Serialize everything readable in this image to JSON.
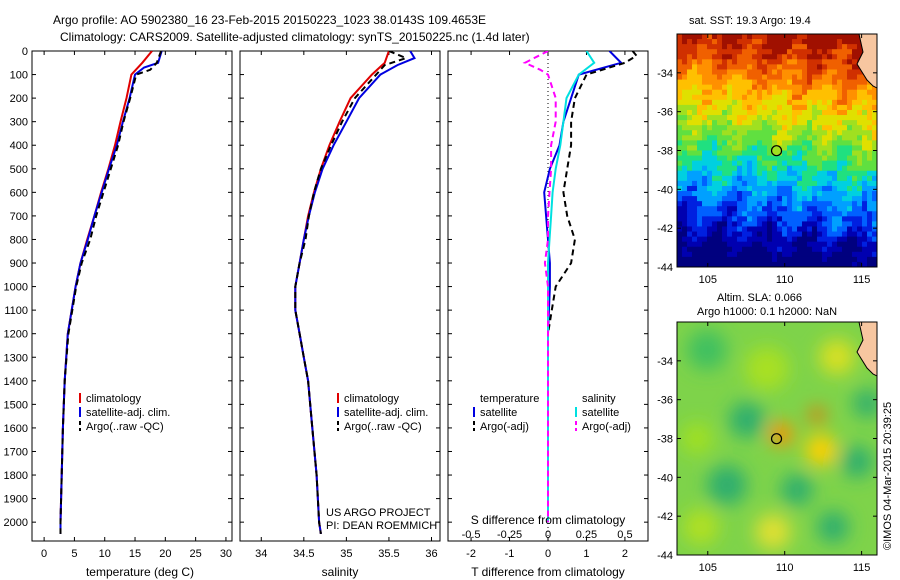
{
  "header": {
    "line1": "Argo profile: AO 5902380_16 23-Feb-2015 20150223_1023 38.0143S 109.4653E",
    "line2": "Climatology: CARS2009. Satellite-adjusted climatology: synTS_20150225.nc (1.4d later)"
  },
  "colors": {
    "climatology": "#e00000",
    "satellite": "#0000e0",
    "argo": "#000000",
    "sal_satellite": "#00e0e0",
    "sal_argo": "#ff00ff"
  },
  "chart_data": [
    {
      "type": "line",
      "panel": "temperature",
      "xlabel": "temperature (deg C)",
      "xlim": [
        -2,
        31
      ],
      "xticks": [
        0,
        5,
        10,
        15,
        20,
        25,
        30
      ],
      "ylim": [
        0,
        2080
      ],
      "yticks": [
        0,
        100,
        200,
        300,
        400,
        500,
        600,
        700,
        800,
        900,
        1000,
        1100,
        1200,
        1300,
        1400,
        1500,
        1600,
        1700,
        1800,
        1900,
        2000
      ],
      "legend": {
        "items": [
          "climatology",
          "satellite-adj. clim.",
          "Argo(..raw -QC)"
        ]
      },
      "series": [
        {
          "name": "climatology",
          "depth": [
            0,
            50,
            100,
            200,
            300,
            400,
            500,
            600,
            700,
            800,
            900,
            1000,
            1200,
            1400,
            1600,
            1800,
            2000,
            2050
          ],
          "values": [
            17.8,
            16.2,
            14.4,
            13.6,
            12.6,
            11.7,
            10.6,
            9.4,
            8.3,
            7.1,
            6.0,
            5.2,
            3.9,
            3.4,
            3.1,
            2.9,
            2.7,
            2.7
          ]
        },
        {
          "name": "satellite-adj. clim.",
          "depth": [
            0,
            50,
            70,
            100,
            200,
            300,
            400,
            500,
            600,
            700,
            800,
            900,
            1000,
            1200,
            1400,
            1600,
            1800,
            2000,
            2050
          ],
          "values": [
            19.4,
            18.8,
            16.5,
            15.0,
            14.1,
            13.0,
            12.0,
            10.7,
            9.5,
            8.3,
            7.2,
            6.0,
            5.2,
            3.9,
            3.4,
            3.1,
            2.9,
            2.7,
            2.7
          ]
        },
        {
          "name": "Argo(..raw -QC)",
          "depth": [
            0,
            50,
            80,
            100,
            200,
            300,
            400,
            500,
            600,
            700,
            800,
            900,
            1000,
            1200,
            1400,
            1600,
            1800,
            2000,
            2050
          ],
          "values": [
            19.3,
            18.6,
            17.5,
            15.2,
            14.2,
            13.1,
            12.2,
            11.0,
            9.8,
            8.6,
            7.6,
            6.2,
            5.3,
            4.0,
            3.4,
            3.1,
            2.9,
            2.7,
            2.7
          ]
        }
      ]
    },
    {
      "type": "line",
      "panel": "salinity",
      "xlabel": "salinity",
      "xlim": [
        33.75,
        36.1
      ],
      "xticks": [
        34,
        34.5,
        35,
        35.5,
        36
      ],
      "ylim": [
        0,
        2080
      ],
      "legend": {
        "items": [
          "climatology",
          "satellite-adj. clim.",
          "Argo(..raw -QC)"
        ]
      },
      "annotation": [
        "US ARGO PROJECT",
        "PI: DEAN ROEMMICH"
      ],
      "series": [
        {
          "name": "climatology",
          "depth": [
            0,
            50,
            100,
            200,
            300,
            400,
            500,
            600,
            700,
            800,
            900,
            1000,
            1100,
            1200,
            1300,
            1400,
            1600,
            1800,
            2000,
            2050
          ],
          "values": [
            35.5,
            35.45,
            35.3,
            35.05,
            34.92,
            34.8,
            34.7,
            34.62,
            34.55,
            34.5,
            34.45,
            34.4,
            34.4,
            34.45,
            34.5,
            34.55,
            34.6,
            34.65,
            34.68,
            34.7
          ]
        },
        {
          "name": "satellite-adj. clim.",
          "depth": [
            0,
            30,
            60,
            100,
            200,
            300,
            400,
            500,
            600,
            700,
            800,
            900,
            1000,
            1100,
            1200,
            1300,
            1400,
            1600,
            1800,
            2000,
            2050
          ],
          "values": [
            35.75,
            35.8,
            35.6,
            35.4,
            35.15,
            35.0,
            34.85,
            34.72,
            34.63,
            34.56,
            34.5,
            34.45,
            34.4,
            34.4,
            34.45,
            34.5,
            34.55,
            34.6,
            34.65,
            34.68,
            34.7
          ]
        },
        {
          "name": "Argo(..raw -QC)",
          "depth": [
            0,
            30,
            60,
            100,
            200,
            300,
            400,
            500,
            600,
            700,
            800,
            900,
            1000,
            1100,
            1200,
            1300,
            1400,
            1600,
            1800,
            2000,
            2050
          ],
          "values": [
            35.5,
            35.7,
            35.45,
            35.35,
            35.1,
            34.95,
            34.82,
            34.7,
            34.62,
            34.56,
            34.52,
            34.45,
            34.4,
            34.4,
            34.45,
            34.5,
            34.55,
            34.6,
            34.65,
            34.68,
            34.7
          ]
        }
      ]
    },
    {
      "type": "line",
      "panel": "difference",
      "xlabel": "T difference from climatology",
      "xlabel_top": "S difference from climatology",
      "xlim": [
        -2.6,
        2.6
      ],
      "xticks_T": [
        -2,
        -1,
        0,
        1,
        2
      ],
      "xticks_S": [
        -0.5,
        -0.25,
        0,
        0.25,
        0.5
      ],
      "xticks_S_labels": [
        "-0.5",
        "-0.25",
        "0",
        "0.25",
        "0.5"
      ],
      "ylim": [
        0,
        2080
      ],
      "legend": {
        "temperature_title": "temperature",
        "salinity_title": "salinity",
        "items": [
          "satellite",
          "Argo(-adj)",
          "satellite",
          "Argo(-adj)"
        ]
      },
      "series": [
        {
          "name": "T satellite",
          "depth": [
            0,
            50,
            100,
            200,
            300,
            400,
            500,
            600,
            700,
            800,
            900,
            1000,
            1200,
            1500,
            2000
          ],
          "values": [
            1.6,
            1.9,
            0.8,
            0.6,
            0.4,
            0.3,
            0.05,
            -0.1,
            -0.05,
            0.0,
            0.05,
            0.05,
            0.0,
            0.0,
            0.0
          ]
        },
        {
          "name": "T Argo(-adj)",
          "depth": [
            0,
            20,
            50,
            100,
            200,
            300,
            400,
            500,
            600,
            700,
            800,
            900,
            1000,
            1100,
            1200,
            1500,
            2000
          ],
          "values": [
            2.2,
            2.3,
            2.0,
            1.0,
            0.7,
            0.6,
            0.6,
            0.5,
            0.4,
            0.5,
            0.7,
            0.6,
            0.2,
            0.1,
            0.0,
            0.0,
            0.0
          ]
        },
        {
          "name": "S satellite",
          "depth": [
            0,
            50,
            100,
            200,
            300,
            400,
            500,
            600,
            700,
            800,
            900,
            1000,
            1500,
            2000
          ],
          "values": [
            0.25,
            0.3,
            0.2,
            0.12,
            0.1,
            0.08,
            0.05,
            0.03,
            0.02,
            0.01,
            0.0,
            0.0,
            0.0,
            0.0
          ]
        },
        {
          "name": "S Argo(-adj)",
          "depth": [
            0,
            50,
            80,
            100,
            200,
            300,
            400,
            500,
            600,
            700,
            800,
            900,
            1000,
            1200,
            1500,
            2000
          ],
          "values": [
            0.0,
            -0.15,
            -0.05,
            0.0,
            0.05,
            0.05,
            0.02,
            0.02,
            0.01,
            0.0,
            0.0,
            -0.02,
            0.0,
            0.0,
            0.0,
            0.0
          ]
        }
      ]
    },
    {
      "type": "heatmap",
      "panel": "sst-map",
      "title": "sat. SST: 19.3 Argo: 19.4",
      "xticks": [
        105,
        110,
        115
      ],
      "yticks": [
        -34,
        -36,
        -38,
        -40,
        -42,
        -44
      ],
      "xlim": [
        103,
        116
      ],
      "ylim": [
        -44,
        -32
      ],
      "argo_position": {
        "lon": 109.47,
        "lat": -38.01
      }
    },
    {
      "type": "heatmap",
      "panel": "sla-map",
      "title_line1": "Altim. SLA: 0.066",
      "title_line2": "Argo h1000: 0.1 h2000: NaN",
      "xticks": [
        105,
        110,
        115
      ],
      "yticks": [
        -34,
        -36,
        -38,
        -40,
        -42,
        -44
      ],
      "xlim": [
        103,
        116
      ],
      "ylim": [
        -44,
        -32
      ],
      "argo_position": {
        "lon": 109.47,
        "lat": -38.01
      }
    }
  ],
  "credit": "©IMOS 04-Mar-2015 20:39:25"
}
